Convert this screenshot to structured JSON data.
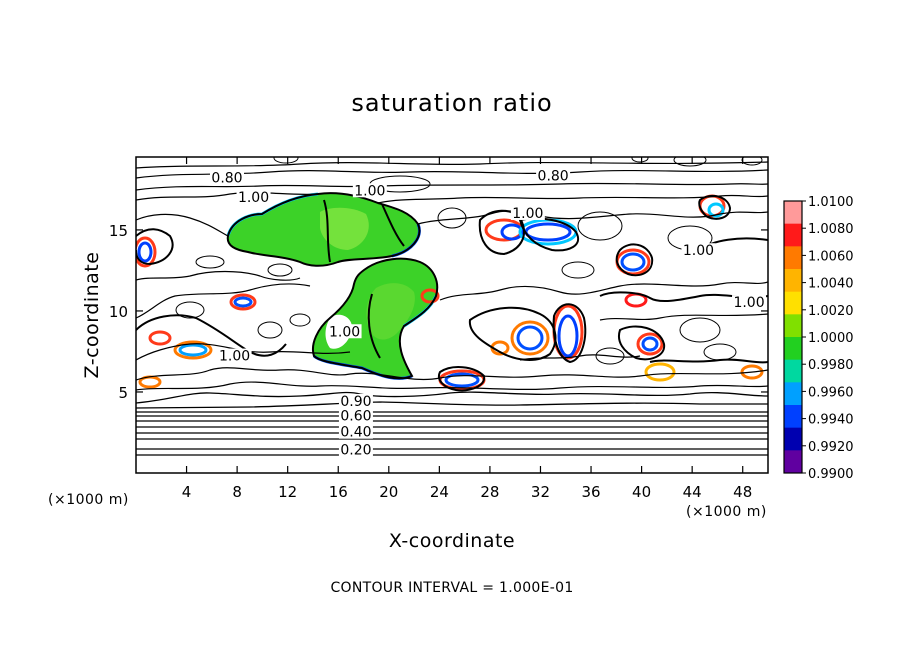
{
  "chart_data": {
    "type": "contour",
    "title": "saturation ratio",
    "xlabel": "X-coordinate",
    "ylabel": "Z-coordinate",
    "x_unit": "(×1000 m)",
    "y_unit": "(×1000 m)",
    "xlim": [
      0,
      50
    ],
    "ylim": [
      0,
      19.5
    ],
    "x_ticks": [
      4,
      8,
      12,
      16,
      20,
      24,
      28,
      32,
      36,
      40,
      44,
      48
    ],
    "y_ticks": [
      5,
      10,
      15
    ],
    "contour_interval_text": "CONTOUR INTERVAL = 1.000E-01",
    "contour_labels": [
      {
        "text": "0.20",
        "x": 17.4,
        "z": 1.2
      },
      {
        "text": "0.40",
        "x": 17.4,
        "z": 2.3
      },
      {
        "text": "0.60",
        "x": 17.4,
        "z": 3.3
      },
      {
        "text": "0.90",
        "x": 17.4,
        "z": 4.2
      },
      {
        "text": "1.00",
        "x": 7.8,
        "z": 7.0
      },
      {
        "text": "1.00",
        "x": 16.5,
        "z": 8.5
      },
      {
        "text": "0.80",
        "x": 7.2,
        "z": 18.0
      },
      {
        "text": "1.00",
        "x": 9.3,
        "z": 16.8
      },
      {
        "text": "1.00",
        "x": 18.5,
        "z": 17.2
      },
      {
        "text": "0.80",
        "x": 33.0,
        "z": 18.1
      },
      {
        "text": "1.00",
        "x": 31.0,
        "z": 15.8
      },
      {
        "text": "1.00",
        "x": 44.5,
        "z": 13.5
      },
      {
        "text": "1.00",
        "x": 48.5,
        "z": 10.3
      }
    ],
    "colorbar": {
      "ticks": [
        "1.0100",
        "1.0080",
        "1.0060",
        "1.0040",
        "1.0020",
        "1.0000",
        "0.9980",
        "0.9960",
        "0.9940",
        "0.9920",
        "0.9900"
      ],
      "colors": [
        "#ff9a9a",
        "#ff1a1a",
        "#ff7a00",
        "#ffb400",
        "#ffe000",
        "#80e000",
        "#22d020",
        "#00d8a0",
        "#00a0ff",
        "#0040ff",
        "#0000b0",
        "#6000a0"
      ],
      "range": [
        0.99,
        1.01
      ]
    },
    "filled_regions": [
      {
        "value": 0.9995,
        "color": "#3cd228",
        "xrange": [
          7.5,
          22
        ],
        "zrange": [
          13.5,
          17.8
        ]
      },
      {
        "value": 0.9995,
        "color": "#3cd228",
        "xrange": [
          14,
          25.5
        ],
        "zrange": [
          6.3,
          13
        ]
      }
    ]
  }
}
